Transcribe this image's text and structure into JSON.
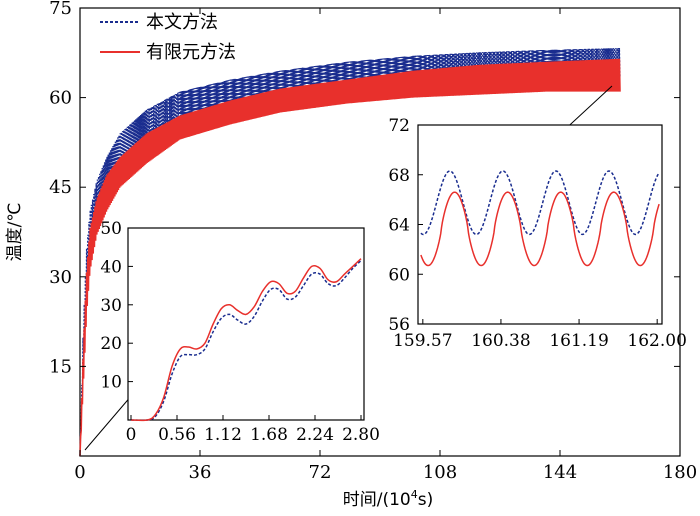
{
  "chart_data": [
    {
      "id": "main",
      "type": "line",
      "title": "",
      "xlabel_prefix": "时间/(10",
      "xlabel_sup": "4",
      "xlabel_suffix": "s)",
      "ylabel": "温度/℃",
      "xlim": [
        0,
        180
      ],
      "ylim": [
        0,
        75
      ],
      "xticks": [
        "0",
        "36",
        "72",
        "108",
        "144",
        "180"
      ],
      "yticks": [
        "15",
        "30",
        "45",
        "60",
        "75"
      ],
      "series": [
        {
          "name": "本文方法",
          "style": "dashed",
          "color": "#1a2d8f",
          "envelope_x": [
            0,
            1,
            2,
            3,
            5,
            8,
            12,
            20,
            30,
            45,
            60,
            80,
            100,
            120,
            140,
            162
          ],
          "envelope_low": [
            0,
            15,
            28,
            34,
            40,
            44,
            48,
            52,
            56,
            58,
            59.5,
            61,
            62,
            62.5,
            63,
            63.5
          ],
          "envelope_high": [
            0,
            22,
            35,
            41,
            46,
            50,
            54,
            58,
            61,
            63,
            64.5,
            66,
            67,
            67.6,
            68,
            68.3
          ]
        },
        {
          "name": "有限元方法",
          "style": "solid",
          "color": "#e8302c",
          "envelope_x": [
            0,
            1,
            2,
            3,
            5,
            8,
            12,
            20,
            30,
            45,
            60,
            80,
            100,
            120,
            140,
            162
          ],
          "envelope_low": [
            0,
            12,
            24,
            31,
            37,
            41,
            45,
            49,
            53,
            55.5,
            57.5,
            59,
            60,
            60.5,
            61,
            61
          ],
          "envelope_high": [
            0,
            18,
            31,
            38,
            43,
            47,
            50,
            54,
            57,
            59.5,
            61.5,
            63,
            64.5,
            65.5,
            66,
            66.5
          ]
        }
      ]
    },
    {
      "id": "inset-early",
      "type": "line",
      "xlim": [
        0,
        2.8
      ],
      "ylim": [
        0,
        50
      ],
      "xticks": [
        "0",
        "0.56",
        "1.12",
        "1.68",
        "2.24",
        "2.80"
      ],
      "yticks": [
        "10",
        "20",
        "30",
        "40",
        "50"
      ],
      "series": [
        {
          "name": "本文方法",
          "x": [
            0,
            0.2,
            0.3,
            0.4,
            0.5,
            0.6,
            0.7,
            0.8,
            0.9,
            1.0,
            1.1,
            1.2,
            1.3,
            1.4,
            1.5,
            1.6,
            1.7,
            1.8,
            1.9,
            2.0,
            2.1,
            2.2,
            2.3,
            2.4,
            2.5,
            2.6,
            2.7,
            2.8
          ],
          "y": [
            0,
            0,
            1,
            5,
            12,
            16.5,
            17,
            17,
            18.5,
            23,
            26.5,
            27.5,
            26,
            25,
            27,
            31,
            34,
            34,
            31.5,
            32,
            35,
            38,
            38,
            35.5,
            35,
            37,
            39.5,
            41.5
          ]
        },
        {
          "name": "有限元方法",
          "x": [
            0,
            0.2,
            0.3,
            0.4,
            0.5,
            0.6,
            0.7,
            0.8,
            0.9,
            1.0,
            1.1,
            1.2,
            1.3,
            1.4,
            1.5,
            1.6,
            1.7,
            1.8,
            1.9,
            2.0,
            2.1,
            2.2,
            2.3,
            2.4,
            2.5,
            2.6,
            2.7,
            2.8
          ],
          "y": [
            0,
            0,
            1.5,
            6,
            14,
            18.5,
            19,
            18.5,
            20,
            25,
            29,
            30,
            28.5,
            27.5,
            29.5,
            33.5,
            36,
            35.5,
            33,
            33.5,
            37,
            40,
            39.5,
            36.5,
            36,
            38,
            40,
            42
          ]
        }
      ]
    },
    {
      "id": "inset-late",
      "type": "line",
      "xlim": [
        159.57,
        162.0
      ],
      "ylim": [
        56,
        72
      ],
      "xticks": [
        "159.57",
        "160.38",
        "161.19",
        "162.00"
      ],
      "yticks": [
        "56",
        "60",
        "64",
        "68",
        "72"
      ],
      "series": [
        {
          "name": "本文方法",
          "period": 0.55,
          "phase_x": 159.85,
          "low": 63.2,
          "high": 68.3
        },
        {
          "name": "有限元方法",
          "period": 0.55,
          "phase_x": 159.9,
          "low": 60.7,
          "high": 66.6
        }
      ]
    }
  ]
}
